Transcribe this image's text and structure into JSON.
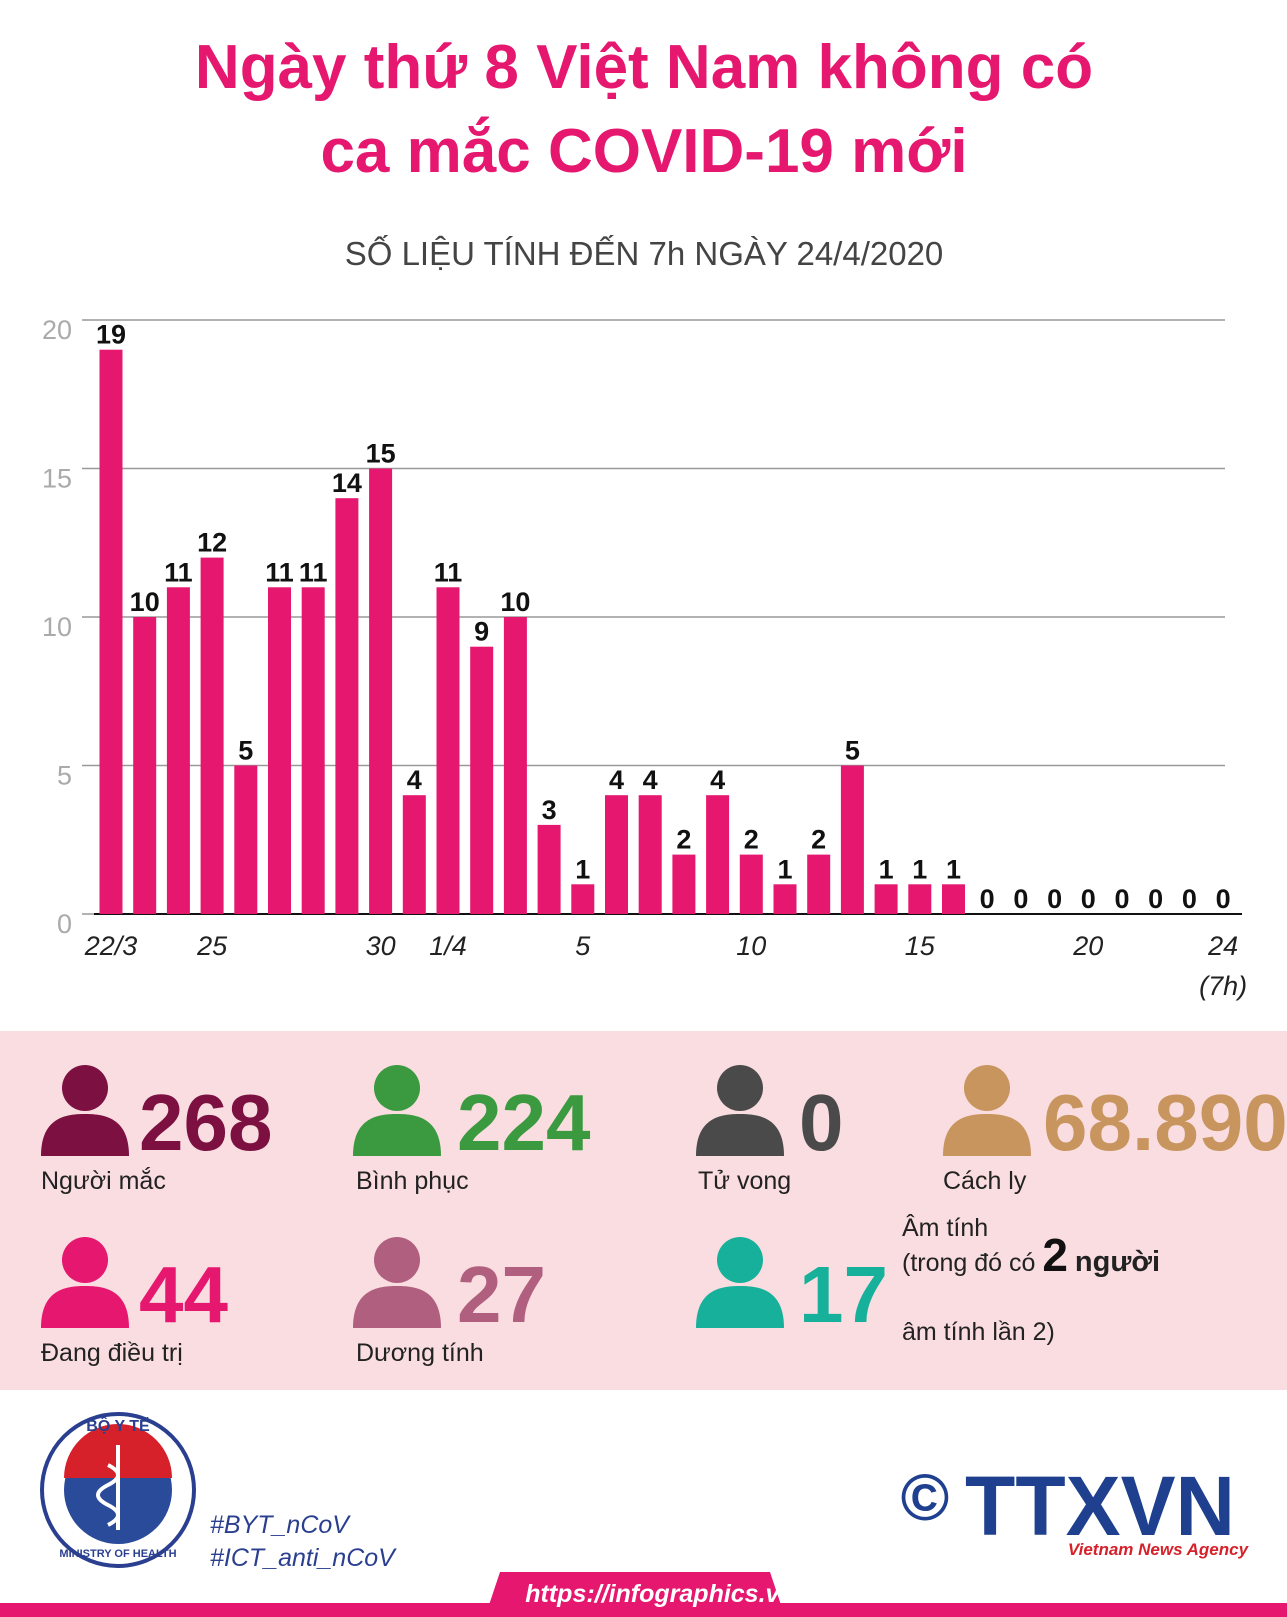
{
  "chart_data": {
    "type": "bar",
    "title": [
      "Ngày thứ 8 Việt Nam không có",
      "ca mắc COVID-19 mới"
    ],
    "subtitle": "SỐ LIỆU TÍNH ĐẾN 7h NGÀY 24/4/2020",
    "categories": [
      "22/3",
      null,
      null,
      "25",
      null,
      null,
      null,
      null,
      "30",
      null,
      "1/4",
      null,
      null,
      null,
      "5",
      null,
      null,
      null,
      null,
      "10",
      null,
      null,
      null,
      null,
      "15",
      null,
      null,
      null,
      null,
      "20",
      null,
      null,
      null,
      "24"
    ],
    "x_note": "(7h)",
    "values": [
      19,
      10,
      11,
      12,
      5,
      11,
      11,
      14,
      15,
      4,
      11,
      9,
      10,
      3,
      1,
      4,
      4,
      2,
      4,
      2,
      1,
      2,
      5,
      1,
      1,
      1,
      0,
      0,
      0,
      0,
      0,
      0,
      0,
      0
    ],
    "color": "#e5176f",
    "ylim": [
      0,
      20
    ],
    "yticks": [
      0,
      5,
      10,
      15,
      20
    ],
    "grid": true
  },
  "stats": [
    {
      "value": "268",
      "label": "Người mắc",
      "color": "#7b1041"
    },
    {
      "value": "224",
      "label": "Bình phục",
      "color": "#3b9a3f"
    },
    {
      "value": "0",
      "label": "Tử vong",
      "color": "#4a4a4a"
    },
    {
      "value": "68.890",
      "label": "Cách ly",
      "color": "#c8955f"
    },
    {
      "value": "44",
      "label": "Đang điều trị",
      "color": "#e5176f"
    },
    {
      "value": "27",
      "label": "Dương tính",
      "color": "#b0607e"
    },
    {
      "value": "17",
      "label": "Âm tính",
      "color": "#17b09a"
    }
  ],
  "negative_note": {
    "pre": "(trong đó có",
    "number": "2",
    "post": "người",
    "last": "âm tính lần 2)"
  },
  "footer": {
    "logo_top": "BỘ Y TẾ",
    "logo_bottom": "MINISTRY OF HEALTH",
    "hashtags": [
      "#BYT_nCoV",
      "#ICT_anti_nCoV"
    ],
    "url": "https://infographics.vn",
    "copyright": "©",
    "agency": "TTXVN",
    "agency_sub": "Vietnam News Agency"
  }
}
